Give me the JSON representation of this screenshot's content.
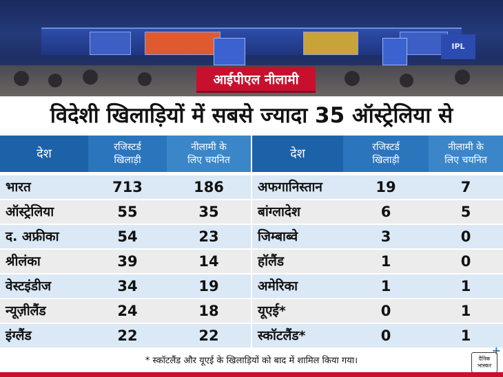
{
  "tag": "आईपीएल नीलामी",
  "headline": "विदेशी खिलाड़ियों में सबसे ज्यादा 35 ऑस्ट्रेलिया से",
  "photo_sign": "IPL",
  "headers": {
    "country": "देश",
    "registered": [
      "रजिस्टर्ड",
      "खिलाड़ी"
    ],
    "selected": [
      "नीलामी के",
      "लिए चयनित"
    ]
  },
  "left_rows": [
    {
      "country": "भारत",
      "registered": "713",
      "selected": "186"
    },
    {
      "country": "ऑस्ट्रेलिया",
      "registered": "55",
      "selected": "35"
    },
    {
      "country": "द. अफ्रीका",
      "registered": "54",
      "selected": "23"
    },
    {
      "country": "श्रीलंका",
      "registered": "39",
      "selected": "14"
    },
    {
      "country": "वेस्टइंडीज",
      "registered": "34",
      "selected": "19"
    },
    {
      "country": "न्यूज़ीलैंड",
      "registered": "24",
      "selected": "18"
    },
    {
      "country": "इंग्लैंड",
      "registered": "22",
      "selected": "22"
    }
  ],
  "right_rows": [
    {
      "country": "अफगानिस्तान",
      "registered": "19",
      "selected": "7"
    },
    {
      "country": "बांग्लादेश",
      "registered": "6",
      "selected": "5"
    },
    {
      "country": "जिम्बाब्वे",
      "registered": "3",
      "selected": "0"
    },
    {
      "country": "हॉलैंड",
      "registered": "1",
      "selected": "0"
    },
    {
      "country": "अमेरिका",
      "registered": "1",
      "selected": "1"
    },
    {
      "country": "यूएई*",
      "registered": "0",
      "selected": "1"
    },
    {
      "country": "स्कॉटलैंड*",
      "registered": "0",
      "selected": "1"
    }
  ],
  "footnote": "* स्कॉटलैंड और यूएई के खिलाड़ियों को बाद में शामिल किया गया।",
  "logo": [
    "दैनिक",
    "भास्कर"
  ],
  "colors": {
    "accent_red": "#c8102e",
    "header_blue_dark": "#1c62a8",
    "header_blue_mid": "#2b75bd",
    "header_blue_light": "#3a86c8",
    "row_blue": "#dbe8f5",
    "row_gray": "#ececec"
  }
}
